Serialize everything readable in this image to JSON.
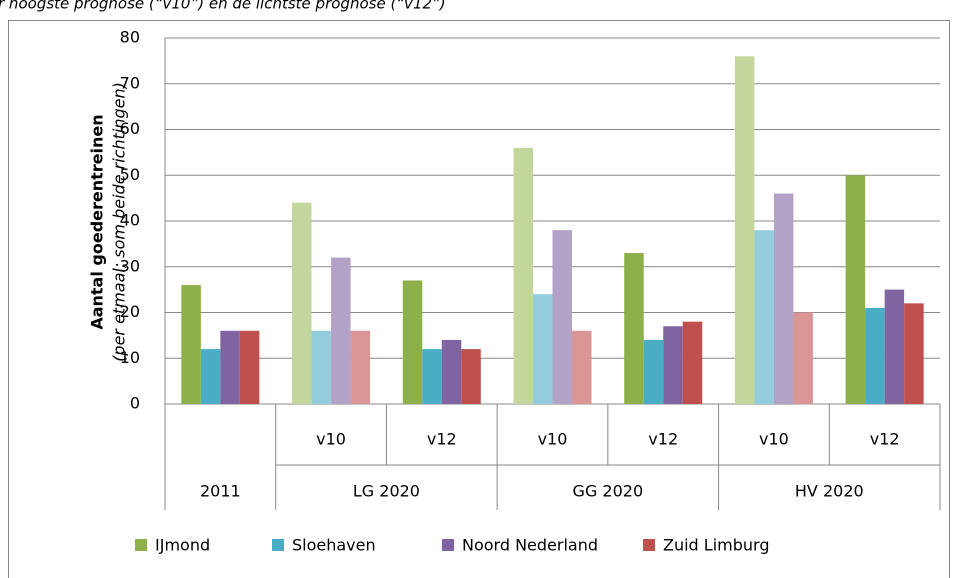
{
  "chart_data": {
    "type": "bar",
    "caption": "r hoogste prognose (“v10”) en de lichtste prognose (“v12”)",
    "y_label": "Aantal goederentreinen",
    "y_sublabel": "(per etmaal; som beide richtingen)",
    "categories": [
      null,
      "v10",
      "v12",
      "v10",
      "v12",
      "v10",
      "v12"
    ],
    "groups": [
      {
        "label": "2011",
        "span": 1
      },
      {
        "label": "LG 2020",
        "span": 2
      },
      {
        "label": "GG 2020",
        "span": 2
      },
      {
        "label": "HV 2020",
        "span": 2
      }
    ],
    "series": [
      {
        "name": "IJmond",
        "color": "#8db04a",
        "colors": [
          "#8db04a",
          "#c3d69b",
          "#8db04a",
          "#c3d69b",
          "#8db04a",
          "#c3d69b",
          "#8db04a"
        ],
        "values": [
          26,
          44,
          27,
          56,
          33,
          76,
          50
        ]
      },
      {
        "name": "Sloehaven",
        "color": "#4bacc6",
        "colors": [
          "#4bacc6",
          "#93cddd",
          "#4bacc6",
          "#93cddd",
          "#4bacc6",
          "#93cddd",
          "#4bacc6"
        ],
        "values": [
          12,
          16,
          12,
          24,
          14,
          38,
          21
        ]
      },
      {
        "name": "Noord Nederland",
        "color": "#8064a2",
        "colors": [
          "#8064a2",
          "#b3a2c7",
          "#8064a2",
          "#b3a2c7",
          "#8064a2",
          "#b3a2c7",
          "#8064a2"
        ],
        "values": [
          16,
          32,
          14,
          38,
          17,
          46,
          25
        ]
      },
      {
        "name": "Zuid Limburg",
        "color": "#c0504d",
        "colors": [
          "#c0504d",
          "#d99694",
          "#c0504d",
          "#d99694",
          "#c0504d",
          "#d99694",
          "#c0504d"
        ],
        "values": [
          16,
          16,
          12,
          16,
          18,
          20,
          22
        ]
      }
    ],
    "ylim": [
      0,
      80
    ],
    "yticks": [
      0,
      10,
      20,
      30,
      40,
      50,
      60,
      70,
      80
    ],
    "grid": true,
    "legend": "bottom"
  }
}
